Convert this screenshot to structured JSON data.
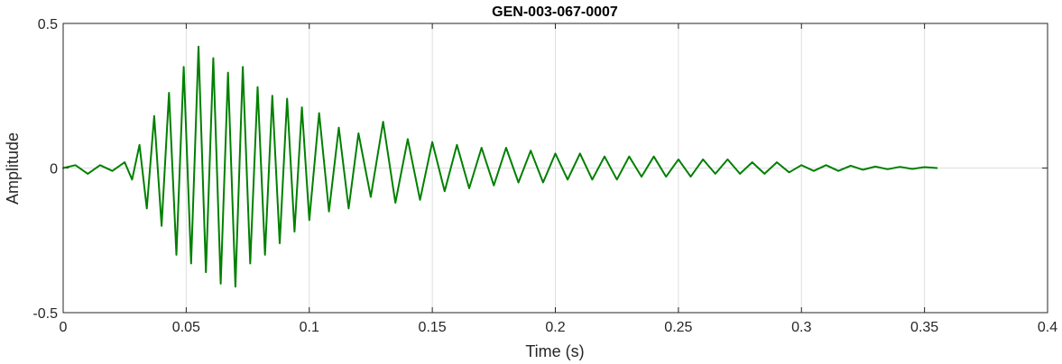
{
  "chart_data": {
    "type": "line",
    "title": "GEN-003-067-0007",
    "xlabel": "Time (s)",
    "ylabel": "Amplitude",
    "xlim": [
      0,
      0.4
    ],
    "ylim": [
      -0.5,
      0.5
    ],
    "xticks": [
      0,
      0.05,
      0.1,
      0.15,
      0.2,
      0.25,
      0.3,
      0.35,
      0.4
    ],
    "xtick_labels": [
      "0",
      "0.05",
      "0.1",
      "0.15",
      "0.2",
      "0.25",
      "0.3",
      "0.35",
      "0.4"
    ],
    "yticks": [
      -0.5,
      0,
      0.5
    ],
    "ytick_labels": [
      "-0.5",
      "0",
      "0.5"
    ],
    "grid": true,
    "series": [
      {
        "color": "#008000",
        "x": [
          0,
          0.005,
          0.01,
          0.015,
          0.02,
          0.025,
          0.028,
          0.031,
          0.034,
          0.037,
          0.04,
          0.043,
          0.046,
          0.049,
          0.052,
          0.055,
          0.058,
          0.061,
          0.064,
          0.067,
          0.07,
          0.073,
          0.076,
          0.079,
          0.082,
          0.085,
          0.088,
          0.091,
          0.094,
          0.097,
          0.1,
          0.104,
          0.108,
          0.112,
          0.116,
          0.12,
          0.125,
          0.13,
          0.135,
          0.14,
          0.145,
          0.15,
          0.155,
          0.16,
          0.165,
          0.17,
          0.175,
          0.18,
          0.185,
          0.19,
          0.195,
          0.2,
          0.205,
          0.21,
          0.215,
          0.22,
          0.225,
          0.23,
          0.235,
          0.24,
          0.245,
          0.25,
          0.255,
          0.26,
          0.265,
          0.27,
          0.275,
          0.28,
          0.285,
          0.29,
          0.295,
          0.3,
          0.305,
          0.31,
          0.315,
          0.32,
          0.325,
          0.33,
          0.335,
          0.34,
          0.345,
          0.35,
          0.355
        ],
        "y": [
          0,
          0.01,
          -0.02,
          0.01,
          -0.01,
          0.02,
          -0.04,
          0.08,
          -0.14,
          0.18,
          -0.2,
          0.26,
          -0.3,
          0.35,
          -0.33,
          0.42,
          -0.36,
          0.38,
          -0.4,
          0.33,
          -0.41,
          0.35,
          -0.33,
          0.28,
          -0.3,
          0.25,
          -0.26,
          0.24,
          -0.22,
          0.21,
          -0.18,
          0.19,
          -0.15,
          0.14,
          -0.14,
          0.12,
          -0.1,
          0.16,
          -0.12,
          0.1,
          -0.11,
          0.09,
          -0.08,
          0.08,
          -0.07,
          0.07,
          -0.06,
          0.07,
          -0.05,
          0.06,
          -0.05,
          0.05,
          -0.04,
          0.05,
          -0.04,
          0.04,
          -0.04,
          0.04,
          -0.03,
          0.04,
          -0.03,
          0.03,
          -0.03,
          0.03,
          -0.02,
          0.03,
          -0.02,
          0.02,
          -0.02,
          0.02,
          -0.015,
          0.01,
          -0.01,
          0.01,
          -0.01,
          0.008,
          -0.006,
          0.005,
          -0.004,
          0.004,
          -0.003,
          0.003,
          0
        ]
      }
    ]
  }
}
